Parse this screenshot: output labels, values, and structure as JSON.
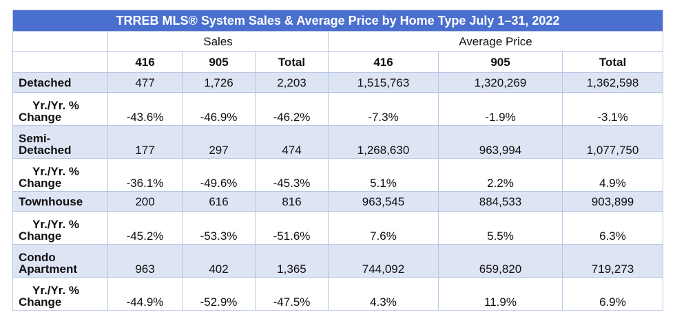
{
  "title": "TRREB MLS® System Sales & Average Price by Home Type July 1–31, 2022",
  "groups": {
    "sales": "Sales",
    "average_price": "Average Price"
  },
  "columns": [
    "416",
    "905",
    "Total",
    "416",
    "905",
    "Total"
  ],
  "rows": [
    {
      "label_line1": "Detached",
      "label_line2": "",
      "values": [
        "477",
        "1,726",
        "2,203",
        "1,515,763",
        "1,320,269",
        "1,362,598"
      ]
    },
    {
      "label_line1": "Yr./Yr. %",
      "label_line2": "Change",
      "values": [
        "-43.6%",
        "-46.9%",
        "-46.2%",
        "-7.3%",
        "-1.9%",
        "-3.1%"
      ]
    },
    {
      "label_line1": "Semi-",
      "label_line2": "Detached",
      "values": [
        "177",
        "297",
        "474",
        "1,268,630",
        "963,994",
        "1,077,750"
      ]
    },
    {
      "label_line1": "Yr./Yr. %",
      "label_line2": "Change",
      "values": [
        "-36.1%",
        "-49.6%",
        "-45.3%",
        "5.1%",
        "2.2%",
        "4.9%"
      ]
    },
    {
      "label_line1": "Townhouse",
      "label_line2": "",
      "values": [
        "200",
        "616",
        "816",
        "963,545",
        "884,533",
        "903,899"
      ]
    },
    {
      "label_line1": "Yr./Yr. %",
      "label_line2": "Change",
      "values": [
        "-45.2%",
        "-53.3%",
        "-51.6%",
        "7.6%",
        "5.5%",
        "6.3%"
      ]
    },
    {
      "label_line1": "Condo",
      "label_line2": "Apartment",
      "values": [
        "963",
        "402",
        "1,365",
        "744,092",
        "659,820",
        "719,273"
      ]
    },
    {
      "label_line1": "Yr./Yr. %",
      "label_line2": "Change",
      "values": [
        "-44.9%",
        "-52.9%",
        "-47.5%",
        "4.3%",
        "11.9%",
        "6.9%"
      ]
    }
  ],
  "colors": {
    "title_bg": "#4a6fcf",
    "row_shade": "#dde4f3",
    "border": "#b9c6e4"
  }
}
